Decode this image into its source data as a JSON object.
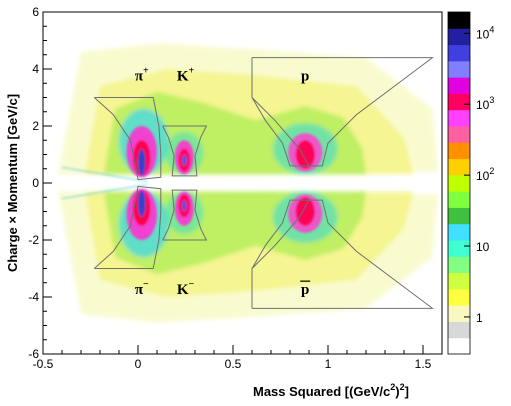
{
  "chart_data": {
    "type": "heatmap",
    "title": "",
    "xlabel": "Mass Squared [(GeV/c²)²]",
    "xlabel_base": "Mass Squared [(GeV/c",
    "xlabel_sup1": "2",
    "xlabel_mid": ")",
    "xlabel_sup2": "2",
    "xlabel_end": "]",
    "ylabel": "Charge × Momentum [GeV/c]",
    "xlim": [
      -0.5,
      1.6
    ],
    "ylim": [
      -6,
      6
    ],
    "x_ticks": [
      {
        "value": -0.5,
        "label": "-0.5"
      },
      {
        "value": 0,
        "label": "0"
      },
      {
        "value": 0.5,
        "label": "0.5"
      },
      {
        "value": 1,
        "label": "1"
      },
      {
        "value": 1.5,
        "label": "1.5"
      }
    ],
    "y_ticks": [
      {
        "value": -6,
        "label": "-6"
      },
      {
        "value": -4,
        "label": "-4"
      },
      {
        "value": -2,
        "label": "-2"
      },
      {
        "value": 0,
        "label": "0"
      },
      {
        "value": 2,
        "label": "2"
      },
      {
        "value": 4,
        "label": "4"
      },
      {
        "value": 6,
        "label": "6"
      }
    ],
    "particle_labels": [
      {
        "name": "pi-plus",
        "base": "π",
        "sup": "+",
        "x": 0.02,
        "y": 3.6,
        "overline": false
      },
      {
        "name": "k-plus",
        "base": "K",
        "sup": "+",
        "x": 0.25,
        "y": 3.6,
        "overline": false
      },
      {
        "name": "proton",
        "base": "p",
        "sup": "",
        "x": 0.88,
        "y": 3.6,
        "overline": false
      },
      {
        "name": "pi-minus",
        "base": "π",
        "sup": "−",
        "x": 0.02,
        "y": -3.9,
        "overline": false
      },
      {
        "name": "k-minus",
        "base": "K",
        "sup": "−",
        "x": 0.25,
        "y": -3.9,
        "overline": false
      },
      {
        "name": "antiproton",
        "base": "p",
        "sup": "",
        "x": 0.88,
        "y": -3.9,
        "overline": true
      }
    ],
    "particle_species": [
      {
        "name": "pion",
        "mass2": 0.0195
      },
      {
        "name": "kaon",
        "mass2": 0.2437
      },
      {
        "name": "proton",
        "mass2": 0.8804
      }
    ],
    "colorbar": {
      "scale": "log",
      "range": [
        0.3,
        20000
      ],
      "ticks": [
        {
          "value": 1,
          "label": "1"
        },
        {
          "value": 10,
          "label": "10"
        },
        {
          "value": 100,
          "label": "10",
          "sup": "2"
        },
        {
          "value": 1000,
          "label": "10",
          "sup": "3"
        },
        {
          "value": 10000,
          "label": "10",
          "sup": "4"
        }
      ],
      "colors": [
        "#ffffff",
        "#d8d8d8",
        "#f8f8c0",
        "#ffff40",
        "#d0ff40",
        "#80ff80",
        "#40ffd0",
        "#40e0ff",
        "#40c040",
        "#80ff40",
        "#c0ff00",
        "#ffd000",
        "#ff9000",
        "#ff60a0",
        "#ff40ff",
        "#ff0060",
        "#e000e0",
        "#8080ff",
        "#4040e0",
        "#2020a0",
        "#000000"
      ]
    }
  }
}
